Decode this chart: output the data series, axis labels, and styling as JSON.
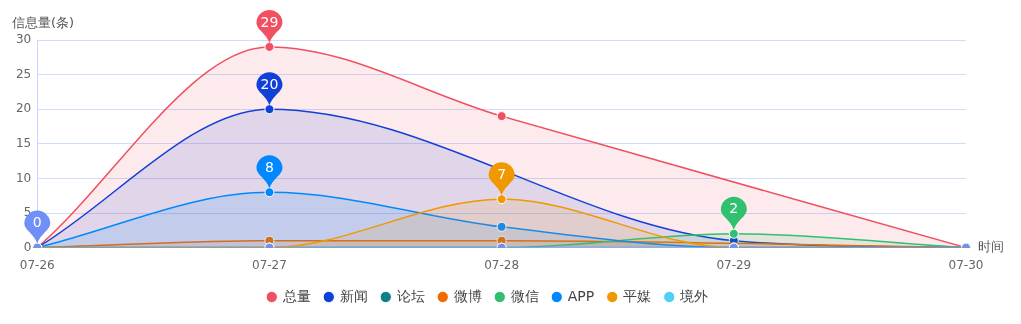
{
  "chart_data": {
    "type": "area",
    "xlabel": "时间",
    "ylabel": "信息量(条)",
    "categories": [
      "07-26",
      "07-27",
      "07-28",
      "07-29",
      "07-30"
    ],
    "ylim": [
      0,
      30
    ],
    "yticks": [
      0,
      5,
      10,
      15,
      20,
      25,
      30
    ],
    "grid": "y",
    "legend": "bottom",
    "marker": "circle",
    "line_style": "solid",
    "series": [
      {
        "name": "总量",
        "color": "#f05060",
        "values": [
          0,
          29,
          19,
          null,
          0
        ]
      },
      {
        "name": "新闻",
        "color": "#1040d8",
        "values": [
          0,
          20,
          null,
          1,
          0
        ]
      },
      {
        "name": "论坛",
        "type": "line",
        "color": "#108088",
        "values": [
          null,
          null,
          null,
          null,
          null
        ]
      },
      {
        "name": "微博",
        "color": "#f06a00",
        "values": [
          0,
          1,
          1,
          null,
          0
        ]
      },
      {
        "name": "微信",
        "color": "#30c070",
        "values": [
          0,
          0,
          0,
          2,
          0
        ]
      },
      {
        "name": "APP",
        "color": "#0088ff",
        "values": [
          0,
          8,
          3,
          0,
          0
        ]
      },
      {
        "name": "平媒",
        "color": "#f09800",
        "values": [
          0,
          0,
          7,
          0,
          0
        ]
      },
      {
        "name": "境外",
        "type": "line",
        "color": "#50d0f8",
        "values": [
          null,
          null,
          null,
          null,
          null
        ]
      },
      {
        "type": "line",
        "color": "#b088e8",
        "values": [
          null,
          null,
          null,
          null,
          null
        ]
      },
      {
        "type": "line",
        "color": "#7090f8",
        "values": [
          0,
          0,
          0,
          0,
          0
        ]
      }
    ],
    "annotations": [
      {
        "text": "29",
        "x": "07-27",
        "y": 29
      },
      {
        "text": "20",
        "x": "07-27",
        "y": 20
      },
      {
        "text": "8",
        "x": "07-27",
        "y": 8
      },
      {
        "text": "7",
        "x": "07-28",
        "y": 7
      },
      {
        "text": "2",
        "x": "07-29",
        "y": 2
      },
      {
        "text": "0",
        "x": "07-26",
        "y": 0
      }
    ]
  }
}
